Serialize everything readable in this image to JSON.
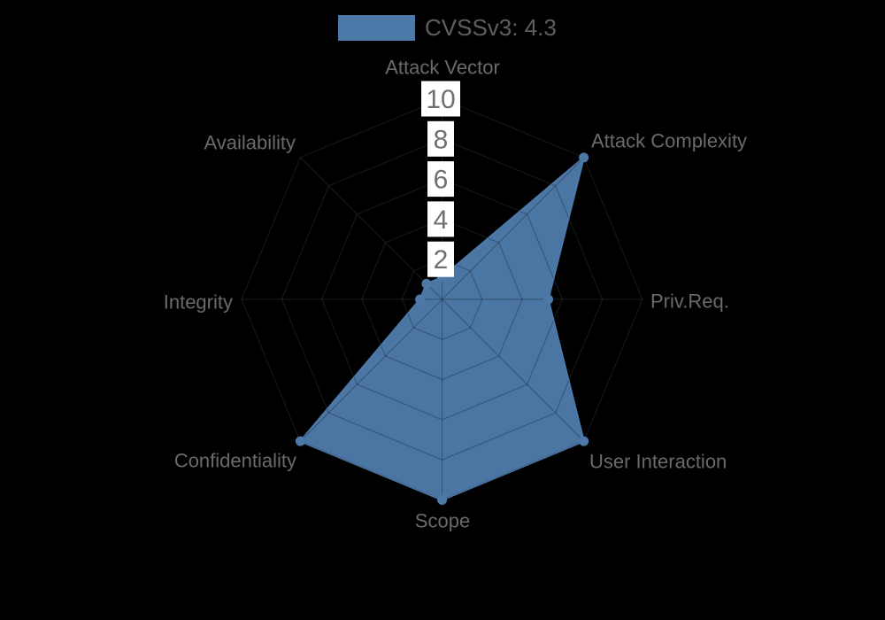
{
  "colors": {
    "background": "#000000",
    "series_blue": "#4d79a8",
    "axis_label_text": "#6a6a6a",
    "tick_text": "#6f6f6f",
    "tick_background": "#ffffff",
    "legend_text": "#5f5f5f",
    "grid_faint": "rgba(255,255,255,0.10)",
    "grid_over_fill": "rgba(0,0,0,0.25)"
  },
  "legend": {
    "label": "CVSSv3: 4.3"
  },
  "chart_data": {
    "type": "radar",
    "grid_shape": "spider",
    "start_axis": "top",
    "direction": "clockwise",
    "legend_position": "top-center",
    "categories": [
      "Attack Vector",
      "Attack Complexity",
      "Priv.Req.",
      "User Interaction",
      "Scope",
      "Confidentiality",
      "Integrity",
      "Availability"
    ],
    "series": [
      {
        "name": "CVSSv3: 4.3",
        "color": "#4d79a8",
        "values": [
          1.1,
          10,
          5.3,
          10,
          10,
          10,
          1.1,
          1.1
        ]
      }
    ],
    "rlim": [
      0,
      10
    ],
    "rticks": [
      2,
      4,
      6,
      8,
      10
    ],
    "rtick_label_background": "white-box"
  }
}
